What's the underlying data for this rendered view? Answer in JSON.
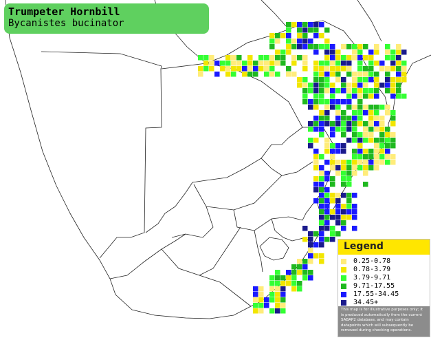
{
  "species": {
    "common_name": "Trumpeter Hornbill",
    "scientific_name": "Bycanistes bucinator"
  },
  "legend": {
    "title": "Legend",
    "items": [
      {
        "label": "0.25-0.78",
        "color": "#ffec7a"
      },
      {
        "label": "0.78-3.79",
        "color": "#f2e600"
      },
      {
        "label": "3.79-9.71",
        "color": "#33ff33"
      },
      {
        "label": "9.71-17.55",
        "color": "#1fb81f"
      },
      {
        "label": "17.55-34.45",
        "color": "#1a1aff"
      },
      {
        "label": "34.45+",
        "color": "#1a1a8c"
      }
    ],
    "disclaimer": "This map is for illustrative purposes only; it is produced automatically from the current SABAP2 database, and may contain datapoints which will subsequently be removed during checking operations."
  },
  "colors": {
    "title_bg": "#5fd05f",
    "legend_header": "#ffe600",
    "border_lines": "#000000",
    "disclaimer_bg": "#8c8c8c"
  }
}
